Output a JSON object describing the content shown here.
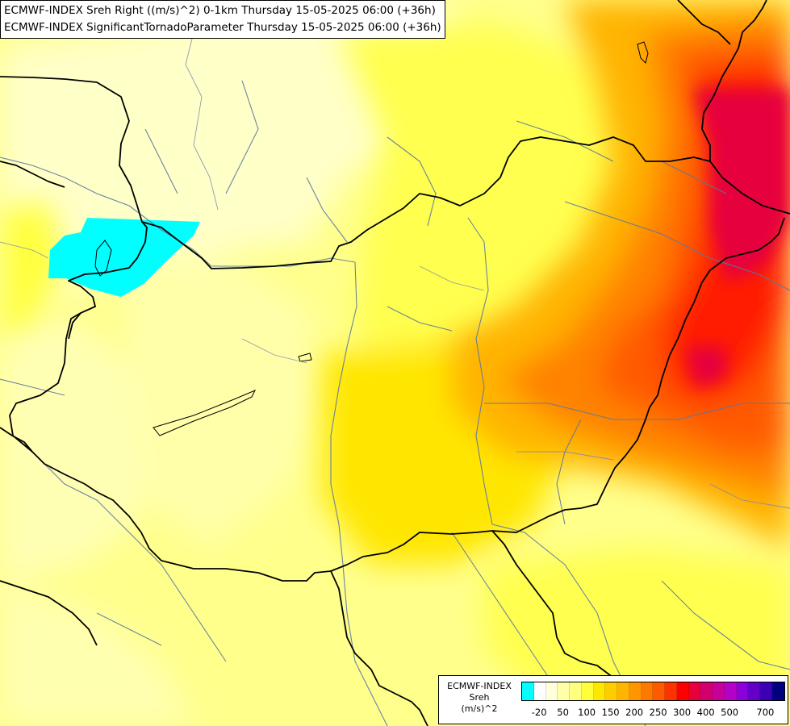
{
  "title": {
    "line1": "ECMWF-INDEX Sreh Right ((m/s)^2) 0-1km Thursday 15-05-2025 06:00 (+36h)",
    "line2": "ECMWF-INDEX SignificantTornadoParameter Thursday 15-05-2025 06:00 (+36h)"
  },
  "legend": {
    "title_lines": [
      "ECMWF-INDEX",
      "Sreh",
      "(m/s)^2"
    ],
    "swatch_colors": [
      "#00ffff",
      "#ffffff",
      "#ffffdc",
      "#ffffa8",
      "#ffff80",
      "#ffff3c",
      "#ffe600",
      "#ffcc00",
      "#ffb400",
      "#ff9600",
      "#ff7800",
      "#ff5a00",
      "#ff3200",
      "#ff0000",
      "#e6003c",
      "#d2006e",
      "#c8009b",
      "#b400c8",
      "#8c00dc",
      "#6400c8",
      "#3c00b4",
      "#000080"
    ],
    "tick_labels": [
      "-20",
      "50",
      "100",
      "150",
      "200",
      "250",
      "300",
      "400",
      "500",
      "700"
    ],
    "tick_swatch_index": [
      1,
      3,
      5,
      7,
      9,
      11,
      13,
      15,
      17,
      20
    ]
  },
  "colors": {
    "background": "#ffffc8",
    "anomaly": "#00ffff",
    "border": "#000000",
    "river": "#5a78a0"
  }
}
